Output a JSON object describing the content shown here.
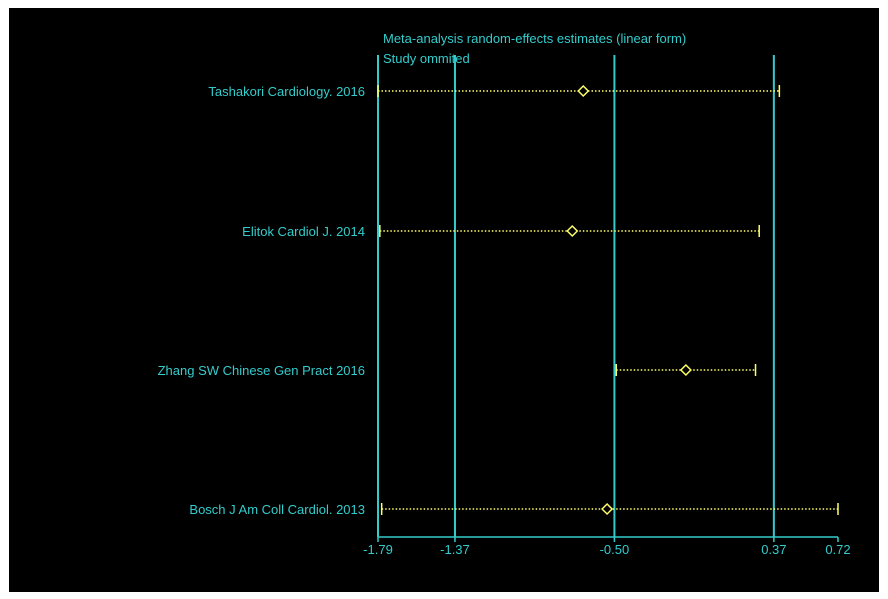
{
  "colors": {
    "background": "#000000",
    "text": "#33cccc",
    "reference_lines": "#33cccc",
    "ci": "#ffff66",
    "estimate": "#ffff66"
  },
  "chart_data": {
    "type": "scatter",
    "title": "Meta-analysis random-effects estimates (linear form)",
    "subtitle": "Study ommited",
    "xlim": [
      -1.79,
      0.72
    ],
    "xticks": [
      -1.79,
      -1.37,
      -0.5,
      0.37,
      0.72
    ],
    "xtick_labels": [
      "-1.79",
      "-1.37",
      "-0.50",
      "0.37",
      "0.72"
    ],
    "reference_lines": [
      -1.79,
      -1.37,
      -0.5,
      0.37
    ],
    "studies": [
      {
        "label": "Tashakori Cardiology. 2016",
        "estimate": -0.67,
        "ci_lower": -1.79,
        "ci_upper": 0.4
      },
      {
        "label": "Elitok Cardiol J. 2014",
        "estimate": -0.73,
        "ci_lower": -1.78,
        "ci_upper": 0.29
      },
      {
        "label": "Zhang SW Chinese Gen Pract 2016",
        "estimate": -0.11,
        "ci_lower": -0.49,
        "ci_upper": 0.27
      },
      {
        "label": "Bosch J Am Coll Cardiol. 2013",
        "estimate": -0.54,
        "ci_lower": -1.77,
        "ci_upper": 0.72
      }
    ]
  }
}
